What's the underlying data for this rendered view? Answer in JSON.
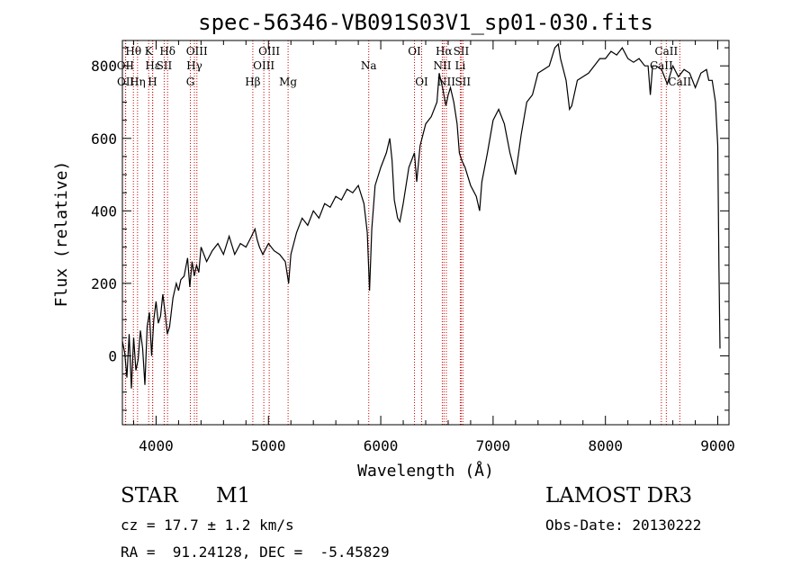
{
  "chart_data": {
    "type": "line",
    "title": "spec-56346-VB091S03V1_sp01-030.fits",
    "xlabel": "Wavelength (Å)",
    "ylabel": "Flux (relative)",
    "xlim": [
      3700,
      9100
    ],
    "ylim": [
      -190,
      870
    ],
    "x_ticks": [
      4000,
      5000,
      6000,
      7000,
      8000,
      9000
    ],
    "y_ticks": [
      0,
      200,
      400,
      600,
      800
    ],
    "series": [
      {
        "name": "flux",
        "points": [
          [
            3700,
            40
          ],
          [
            3720,
            10
          ],
          [
            3740,
            -60
          ],
          [
            3760,
            60
          ],
          [
            3780,
            -90
          ],
          [
            3800,
            50
          ],
          [
            3820,
            -40
          ],
          [
            3840,
            -10
          ],
          [
            3860,
            70
          ],
          [
            3880,
            20
          ],
          [
            3900,
            -80
          ],
          [
            3920,
            80
          ],
          [
            3940,
            120
          ],
          [
            3960,
            0
          ],
          [
            3980,
            100
          ],
          [
            4000,
            150
          ],
          [
            4020,
            90
          ],
          [
            4040,
            110
          ],
          [
            4060,
            170
          ],
          [
            4080,
            120
          ],
          [
            4100,
            60
          ],
          [
            4120,
            80
          ],
          [
            4150,
            160
          ],
          [
            4180,
            200
          ],
          [
            4200,
            180
          ],
          [
            4220,
            210
          ],
          [
            4250,
            220
          ],
          [
            4280,
            270
          ],
          [
            4300,
            190
          ],
          [
            4320,
            260
          ],
          [
            4340,
            220
          ],
          [
            4360,
            250
          ],
          [
            4380,
            230
          ],
          [
            4400,
            300
          ],
          [
            4450,
            260
          ],
          [
            4500,
            290
          ],
          [
            4550,
            310
          ],
          [
            4600,
            280
          ],
          [
            4650,
            330
          ],
          [
            4700,
            280
          ],
          [
            4750,
            310
          ],
          [
            4800,
            300
          ],
          [
            4850,
            330
          ],
          [
            4880,
            350
          ],
          [
            4900,
            320
          ],
          [
            4920,
            300
          ],
          [
            4950,
            280
          ],
          [
            5000,
            310
          ],
          [
            5050,
            290
          ],
          [
            5100,
            280
          ],
          [
            5150,
            260
          ],
          [
            5180,
            200
          ],
          [
            5200,
            280
          ],
          [
            5250,
            340
          ],
          [
            5300,
            380
          ],
          [
            5350,
            360
          ],
          [
            5400,
            400
          ],
          [
            5450,
            380
          ],
          [
            5500,
            420
          ],
          [
            5550,
            410
          ],
          [
            5600,
            440
          ],
          [
            5650,
            430
          ],
          [
            5700,
            460
          ],
          [
            5750,
            450
          ],
          [
            5800,
            470
          ],
          [
            5850,
            420
          ],
          [
            5880,
            340
          ],
          [
            5900,
            180
          ],
          [
            5920,
            350
          ],
          [
            5950,
            470
          ],
          [
            6000,
            520
          ],
          [
            6050,
            560
          ],
          [
            6080,
            600
          ],
          [
            6100,
            540
          ],
          [
            6120,
            430
          ],
          [
            6150,
            380
          ],
          [
            6170,
            370
          ],
          [
            6200,
            420
          ],
          [
            6250,
            520
          ],
          [
            6300,
            560
          ],
          [
            6320,
            480
          ],
          [
            6350,
            580
          ],
          [
            6400,
            640
          ],
          [
            6450,
            660
          ],
          [
            6500,
            700
          ],
          [
            6520,
            780
          ],
          [
            6550,
            740
          ],
          [
            6580,
            690
          ],
          [
            6600,
            720
          ],
          [
            6620,
            740
          ],
          [
            6650,
            700
          ],
          [
            6680,
            640
          ],
          [
            6700,
            560
          ],
          [
            6720,
            540
          ],
          [
            6750,
            520
          ],
          [
            6800,
            470
          ],
          [
            6850,
            440
          ],
          [
            6880,
            400
          ],
          [
            6900,
            480
          ],
          [
            6950,
            560
          ],
          [
            7000,
            650
          ],
          [
            7050,
            680
          ],
          [
            7100,
            640
          ],
          [
            7150,
            560
          ],
          [
            7200,
            500
          ],
          [
            7250,
            610
          ],
          [
            7300,
            700
          ],
          [
            7350,
            720
          ],
          [
            7400,
            780
          ],
          [
            7450,
            790
          ],
          [
            7500,
            800
          ],
          [
            7550,
            850
          ],
          [
            7580,
            860
          ],
          [
            7600,
            820
          ],
          [
            7650,
            760
          ],
          [
            7680,
            680
          ],
          [
            7700,
            690
          ],
          [
            7750,
            760
          ],
          [
            7800,
            770
          ],
          [
            7850,
            780
          ],
          [
            7900,
            800
          ],
          [
            7950,
            820
          ],
          [
            8000,
            820
          ],
          [
            8050,
            840
          ],
          [
            8100,
            830
          ],
          [
            8150,
            850
          ],
          [
            8200,
            820
          ],
          [
            8250,
            810
          ],
          [
            8300,
            820
          ],
          [
            8350,
            800
          ],
          [
            8380,
            800
          ],
          [
            8400,
            720
          ],
          [
            8420,
            800
          ],
          [
            8450,
            800
          ],
          [
            8500,
            790
          ],
          [
            8550,
            750
          ],
          [
            8600,
            800
          ],
          [
            8650,
            770
          ],
          [
            8700,
            790
          ],
          [
            8750,
            780
          ],
          [
            8800,
            740
          ],
          [
            8850,
            780
          ],
          [
            8900,
            790
          ],
          [
            8920,
            760
          ],
          [
            8950,
            760
          ],
          [
            8980,
            700
          ],
          [
            9000,
            580
          ],
          [
            9010,
            250
          ],
          [
            9020,
            20
          ]
        ]
      }
    ],
    "line_markers": [
      {
        "label": "Hθ",
        "wl": 3798,
        "row": 1
      },
      {
        "label": "OII",
        "wl": 3727,
        "row": 2
      },
      {
        "label": "OII",
        "wl": 3729,
        "row": 3
      },
      {
        "label": "K",
        "wl": 3934,
        "row": 1
      },
      {
        "label": "Hε",
        "wl": 3970,
        "row": 2
      },
      {
        "label": "Hη",
        "wl": 3835,
        "row": 3
      },
      {
        "label": "H",
        "wl": 3968,
        "row": 3
      },
      {
        "label": "SII",
        "wl": 4072,
        "row": 2
      },
      {
        "label": "Hδ",
        "wl": 4102,
        "row": 1
      },
      {
        "label": "OIII",
        "wl": 4363,
        "row": 1
      },
      {
        "label": "Hγ",
        "wl": 4341,
        "row": 2
      },
      {
        "label": "G",
        "wl": 4305,
        "row": 3
      },
      {
        "label": "Hβ",
        "wl": 4861,
        "row": 3
      },
      {
        "label": "OIII",
        "wl": 5007,
        "row": 1
      },
      {
        "label": "OIII",
        "wl": 4959,
        "row": 2
      },
      {
        "label": "Mg",
        "wl": 5175,
        "row": 3
      },
      {
        "label": "Na",
        "wl": 5893,
        "row": 2
      },
      {
        "label": "OI",
        "wl": 6300,
        "row": 1
      },
      {
        "label": "OI",
        "wl": 6364,
        "row": 3
      },
      {
        "label": "Hα",
        "wl": 6563,
        "row": 1
      },
      {
        "label": "NII",
        "wl": 6548,
        "row": 2
      },
      {
        "label": "NII",
        "wl": 6584,
        "row": 3
      },
      {
        "label": "SII",
        "wl": 6716,
        "row": 1
      },
      {
        "label": "Li",
        "wl": 6708,
        "row": 2
      },
      {
        "label": "SII",
        "wl": 6731,
        "row": 3
      },
      {
        "label": "CaII",
        "wl": 8542,
        "row": 1
      },
      {
        "label": "CaII",
        "wl": 8498,
        "row": 2
      },
      {
        "label": "CaII",
        "wl": 8662,
        "row": 3
      }
    ],
    "marker_color": "#cc0000"
  },
  "footer": {
    "object_type": "STAR",
    "subclass": "M1",
    "survey": "LAMOST DR3",
    "cz": "cz = 17.7 ± 1.2 km/s",
    "obs_date": "Obs-Date: 20130222",
    "coords": "RA =  91.24128, DEC =  -5.45829"
  }
}
